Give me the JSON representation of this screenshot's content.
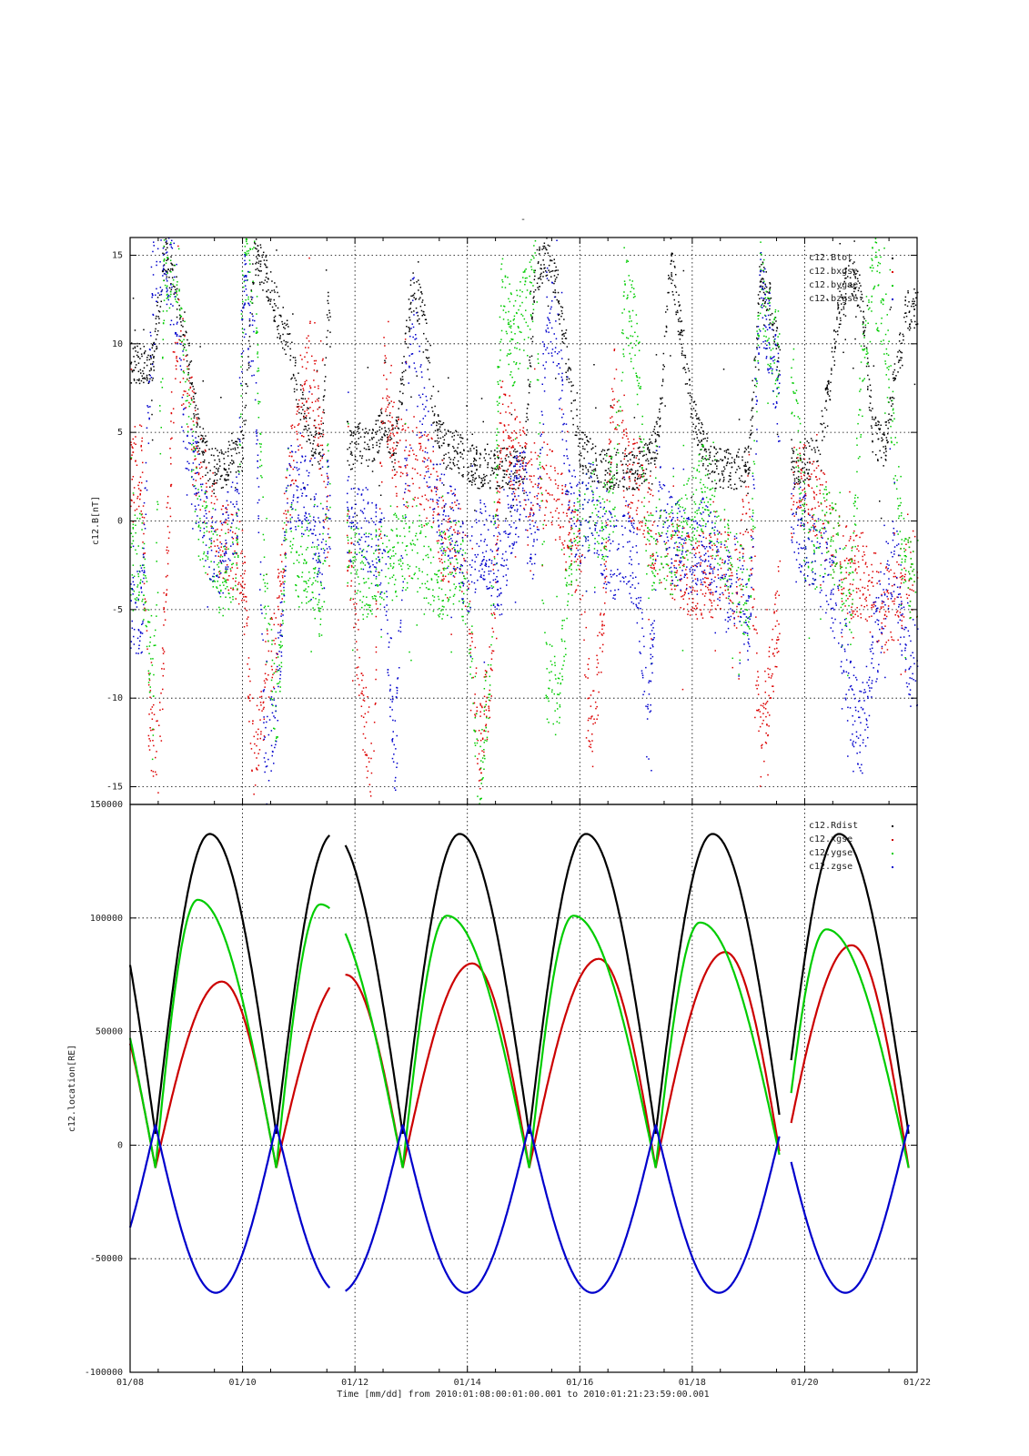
{
  "chart_data": [
    {
      "type": "scatter",
      "title": "-",
      "ylabel": "c12.B[nT]",
      "ylim": [
        -16,
        16
      ],
      "yticks": [
        -15,
        -10,
        -5,
        0,
        5,
        10,
        15
      ],
      "xlim": [
        0,
        14
      ],
      "grid": true,
      "legend_position": "top-right",
      "data_gaps_days": [
        [
          3.55,
          3.85
        ],
        [
          11.55,
          11.75
        ]
      ],
      "series": [
        {
          "name": "c12.Btot",
          "color": "#000000",
          "x": [
            0.4,
            0.6,
            0.8,
            1.0,
            1.2,
            1.4,
            1.6,
            1.8,
            2.0,
            2.2,
            2.4,
            2.6,
            2.8,
            3.0,
            3.2,
            3.4,
            3.5,
            3.9,
            4.1,
            4.3,
            4.5,
            4.7,
            5.0,
            5.2,
            5.4,
            5.6,
            5.8,
            6.0,
            6.2,
            6.4,
            6.6,
            6.8,
            7.0,
            7.2,
            7.4,
            7.6,
            7.8,
            8.0,
            8.2,
            8.4,
            8.6,
            8.8,
            9.0,
            9.2,
            9.4,
            9.6,
            10.0,
            10.2,
            10.4,
            10.6,
            10.8,
            11.0,
            11.2,
            11.4,
            11.8,
            12.0,
            12.2,
            12.4,
            12.6,
            12.8,
            13.0,
            13.2,
            13.4,
            13.6,
            13.8
          ],
          "y": [
            9,
            15,
            13,
            10,
            5,
            3,
            3,
            3.5,
            4,
            15,
            14,
            12,
            10,
            7,
            5,
            4,
            12,
            4,
            4.5,
            4,
            6,
            4,
            13,
            12,
            6,
            4,
            4,
            3.5,
            3,
            3,
            3,
            3,
            3,
            14,
            15,
            13,
            8,
            4,
            3.5,
            3,
            3,
            3,
            3,
            3.5,
            5,
            15,
            6,
            4,
            3,
            3,
            3,
            3.5,
            14,
            12,
            3,
            3.5,
            3.5,
            7,
            12,
            14,
            13,
            5,
            4,
            8,
            12
          ]
        },
        {
          "name": "c12.bxgse",
          "color": "#dd0000",
          "x": [
            0.2,
            0.3,
            0.5,
            0.6,
            0.8,
            1.0,
            1.2,
            1.4,
            1.6,
            1.9,
            2.0,
            2.2,
            2.4,
            2.6,
            2.8,
            3.0,
            3.2,
            3.4,
            3.5,
            3.9,
            4.1,
            4.3,
            4.5,
            4.7,
            5.0,
            5.2,
            5.4,
            5.6,
            5.8,
            6.0,
            6.2,
            6.4,
            6.6,
            6.8,
            7.0,
            7.2,
            7.4,
            7.6,
            7.8,
            8.0,
            8.2,
            8.4,
            8.6,
            8.8,
            9.0,
            9.2,
            9.4,
            9.6,
            10.0,
            10.2,
            10.4,
            10.6,
            10.8,
            11.0,
            11.2,
            11.4,
            11.8,
            12.0,
            12.2,
            12.4,
            12.6,
            12.8,
            13.0,
            13.2,
            13.4,
            13.6,
            13.8
          ],
          "y": [
            3,
            -10,
            -14,
            -6,
            11,
            8,
            3,
            1,
            -1,
            -2,
            -3,
            -14,
            -9,
            -6,
            2,
            6,
            9,
            4,
            0,
            -2,
            -10,
            -14,
            8,
            4,
            3,
            3,
            2,
            -2,
            -1,
            -3,
            -13,
            -9,
            6,
            4,
            3,
            2,
            2,
            1,
            -1,
            -2,
            -13,
            -5,
            8,
            3,
            2,
            0,
            -1,
            -2,
            -3,
            -3,
            -3,
            -2,
            -4,
            2,
            -13,
            -8,
            2,
            2,
            1,
            0,
            -2,
            -3,
            -3,
            -4,
            -5,
            -5,
            -3
          ]
        },
        {
          "name": "c12.bygse",
          "color": "#00cc00",
          "x": [
            0.2,
            0.4,
            0.6,
            0.8,
            1.0,
            1.2,
            1.4,
            1.6,
            1.9,
            2.0,
            2.2,
            2.4,
            2.6,
            2.8,
            3.0,
            3.2,
            3.4,
            3.5,
            3.9,
            4.1,
            4.3,
            4.5,
            4.7,
            5.0,
            5.2,
            5.4,
            5.6,
            5.8,
            6.0,
            6.2,
            6.4,
            6.6,
            6.8,
            7.0,
            7.2,
            7.4,
            7.6,
            7.8,
            8.0,
            8.2,
            8.4,
            8.6,
            8.8,
            9.0,
            9.2,
            9.4,
            9.6,
            10.0,
            10.2,
            10.4,
            10.6,
            10.8,
            11.0,
            11.2,
            11.4,
            11.8,
            12.0,
            12.2,
            12.4,
            12.6,
            12.8,
            13.0,
            13.2,
            13.4,
            13.6,
            13.8
          ],
          "y": [
            -2,
            -10,
            14,
            15,
            8,
            0,
            -1,
            -3,
            -2,
            14,
            15,
            -5,
            -11,
            2,
            -3,
            -2,
            -5,
            2,
            -2,
            -3,
            -3,
            -2,
            -2,
            -1,
            -2,
            -3,
            -3,
            -2,
            -4,
            -15,
            -8,
            13,
            10,
            12,
            14,
            -9,
            -10,
            -3,
            0,
            1,
            0,
            2,
            13,
            10,
            -2,
            -1,
            -2,
            1,
            2,
            0,
            -2,
            -3,
            -5,
            14,
            10,
            8,
            -1,
            -2,
            0,
            -2,
            -5,
            8,
            14,
            12,
            3,
            -3
          ]
        },
        {
          "name": "c12.bzgse",
          "color": "#0000cc",
          "x": [
            0.2,
            0.4,
            0.6,
            0.8,
            1.0,
            1.2,
            1.4,
            1.6,
            1.9,
            2.0,
            2.2,
            2.4,
            2.6,
            2.8,
            3.0,
            3.2,
            3.4,
            3.5,
            3.9,
            4.1,
            4.3,
            4.5,
            4.7,
            5.0,
            5.2,
            5.4,
            5.6,
            5.8,
            6.0,
            6.2,
            6.4,
            6.6,
            6.8,
            7.0,
            7.2,
            7.4,
            7.6,
            7.8,
            8.0,
            8.2,
            8.4,
            8.6,
            8.8,
            9.0,
            9.2,
            9.4,
            9.6,
            10.0,
            10.2,
            10.4,
            10.6,
            10.8,
            11.0,
            11.2,
            11.4,
            11.8,
            12.0,
            12.2,
            12.4,
            12.6,
            12.8,
            13.0,
            13.2,
            13.4,
            13.6,
            13.8
          ],
          "y": [
            -5,
            14,
            15,
            13,
            4,
            2,
            -1,
            -2,
            1,
            13,
            10,
            -14,
            -10,
            2,
            2,
            1,
            -3,
            1,
            0,
            0,
            -1,
            -2,
            -14,
            12,
            6,
            2,
            0,
            -1,
            -3,
            -1,
            -2,
            -3,
            1,
            2,
            -2,
            12,
            10,
            1,
            0,
            1,
            -1,
            -2,
            -1,
            -3,
            -12,
            2,
            -1,
            -2,
            -1,
            -2,
            -4,
            -3,
            -6,
            13,
            10,
            0,
            -1,
            -2,
            -3,
            -5,
            -10,
            -12,
            -8,
            -4,
            -2,
            -8
          ]
        }
      ]
    },
    {
      "type": "line",
      "ylabel": "c12.location[RE]",
      "ylim": [
        -100000,
        150000
      ],
      "yticks": [
        -100000,
        -50000,
        0,
        50000,
        100000,
        150000
      ],
      "xlim": [
        0,
        14
      ],
      "xticks": [
        "01/08",
        "01/10",
        "01/12",
        "01/14",
        "01/16",
        "01/18",
        "01/20",
        "01/22"
      ],
      "xlabel": "Time [mm/dd]  from 2010:01:08:00:01:00.001  to  2010:01:21:23:59:00.001",
      "grid": true,
      "legend_position": "top-right",
      "orbit": {
        "perigee_days": [
          0.45,
          2.6,
          4.85,
          7.1,
          9.35,
          11.6,
          13.85
        ],
        "data_gaps_days": [
          [
            3.55,
            3.82
          ],
          [
            11.55,
            11.75
          ]
        ],
        "note": "each series traces a half-sine arc between consecutive perigee times"
      },
      "series": [
        {
          "name": "c12.Rdist",
          "color": "#000000",
          "peaks": [
            137000,
            137000,
            137000,
            137000,
            137000,
            137000
          ],
          "floor": 5000
        },
        {
          "name": "c12.xgse",
          "color": "#cc0000",
          "peaks": [
            72000,
            75000,
            80000,
            82000,
            85000,
            88000
          ],
          "floor": -10000
        },
        {
          "name": "c12.ygse",
          "color": "#00cc00",
          "peaks": [
            108000,
            106000,
            101000,
            101000,
            98000,
            95000
          ],
          "floor": -10000
        },
        {
          "name": "c12.zgse",
          "color": "#0000cc",
          "peaks": [
            -65000,
            -65000,
            -65000,
            -65000,
            -65000,
            -65000
          ],
          "floor": 9000
        }
      ]
    }
  ]
}
